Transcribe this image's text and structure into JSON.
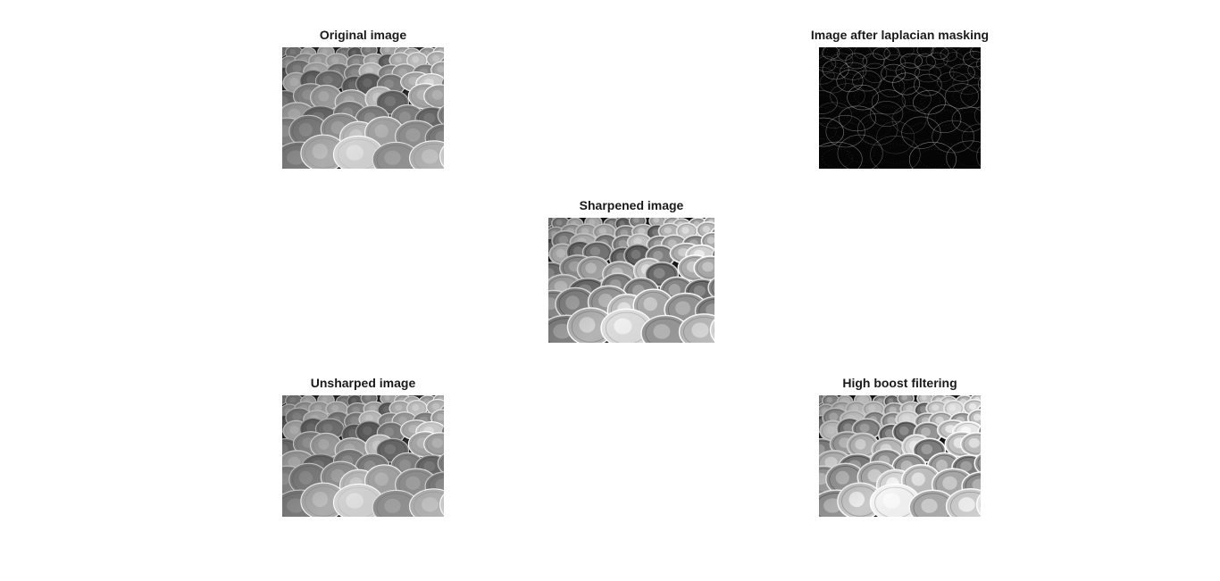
{
  "figure": {
    "panels": [
      {
        "id": "original",
        "title": "Original image",
        "style": "normal"
      },
      {
        "id": "laplacian",
        "title": "Image after laplacian masking",
        "style": "edges"
      },
      {
        "id": "sharpened",
        "title": "Sharpened image",
        "style": "sharp"
      },
      {
        "id": "unsharped",
        "title": "Unsharped image",
        "style": "normal"
      },
      {
        "id": "highboost",
        "title": "High boost filtering",
        "style": "boost"
      }
    ]
  }
}
